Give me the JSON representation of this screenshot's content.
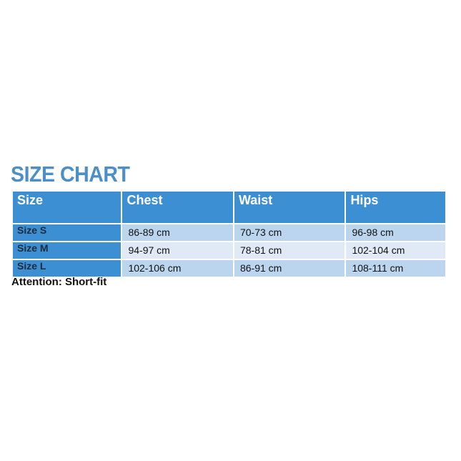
{
  "title": "SIZE CHART",
  "colors": {
    "title": "#4a8fc9",
    "header": "#3d8fd4",
    "row_light": "#bcd5ee",
    "row_lighter": "#dfeaf6"
  },
  "table": {
    "headers": [
      "Size",
      "Chest",
      "Waist",
      "Hips"
    ],
    "rows": [
      [
        "Size S",
        "86-89 cm",
        "70-73 cm",
        "96-98 cm"
      ],
      [
        "Size M",
        "94-97 cm",
        "78-81 cm",
        "102-104 cm"
      ],
      [
        "Size L",
        "102-106 cm",
        "86-91 cm",
        "108-111 cm"
      ]
    ]
  },
  "note": "Attention: Short-fit"
}
